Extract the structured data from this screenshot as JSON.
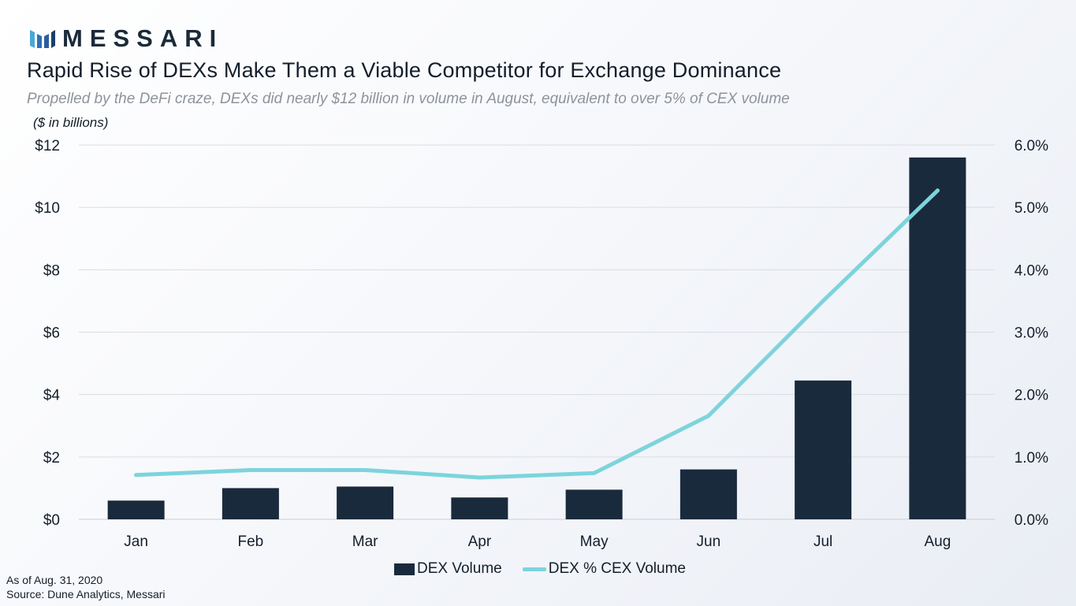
{
  "brand": {
    "name": "MESSARI",
    "logo": "messari-logo-icon"
  },
  "colors": {
    "bar": "#1a2a3d",
    "line": "#7cd4dc",
    "grid": "#d9dde3",
    "text": "#141e2b"
  },
  "chart_data": {
    "type": "bar",
    "title": "Rapid Rise of DEXs Make Them a Viable Competitor for Exchange Dominance",
    "subtitle": "Propelled by the DeFi craze, DEXs did nearly $12 billion in volume in August, equivalent to over 5% of CEX volume",
    "units_label": "($ in billions)",
    "categories": [
      "Jan",
      "Feb",
      "Mar",
      "Apr",
      "May",
      "Jun",
      "Jul",
      "Aug"
    ],
    "series": [
      {
        "name": "DEX Volume",
        "type": "bar",
        "axis": "left",
        "values": [
          0.6,
          1.0,
          1.05,
          0.7,
          0.95,
          1.6,
          4.45,
          11.6
        ]
      },
      {
        "name": "DEX % CEX Volume",
        "type": "line",
        "axis": "right",
        "values": [
          0.71,
          0.79,
          0.79,
          0.67,
          0.74,
          1.66,
          3.5,
          5.27
        ]
      }
    ],
    "y_left": {
      "range": [
        0,
        12
      ],
      "ticks": [
        0,
        2,
        4,
        6,
        8,
        10,
        12
      ],
      "tick_labels": [
        "$0",
        "$2",
        "$4",
        "$6",
        "$8",
        "$10",
        "$12"
      ]
    },
    "y_right": {
      "range": [
        0,
        6
      ],
      "ticks": [
        0,
        1,
        2,
        3,
        4,
        5,
        6
      ],
      "tick_labels": [
        "0.0%",
        "1.0%",
        "2.0%",
        "3.0%",
        "4.0%",
        "5.0%",
        "6.0%"
      ]
    },
    "grid": true,
    "legend_position": "bottom-center"
  },
  "footnotes": {
    "as_of": "As of Aug. 31, 2020",
    "source": "Source: Dune Analytics, Messari"
  }
}
